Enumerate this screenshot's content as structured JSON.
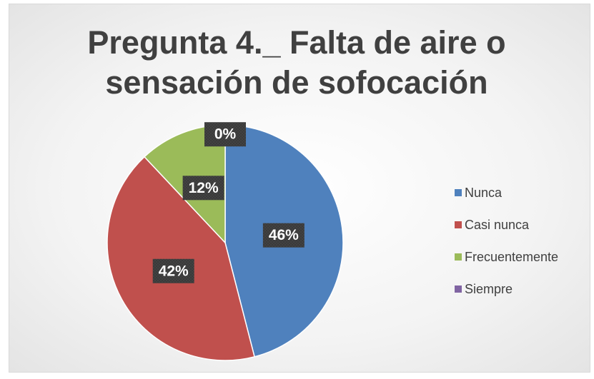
{
  "chart_data": {
    "type": "pie",
    "title": "Pregunta 4._ Falta de aire o sensación de sofocación",
    "categories": [
      "Nunca",
      "Casi nunca",
      "Frecuentemente",
      "Siempre"
    ],
    "values": [
      46,
      42,
      12,
      0
    ],
    "value_labels": [
      "46%",
      "42%",
      "12%",
      "0%"
    ],
    "colors": [
      "#4f81bd",
      "#c0504d",
      "#9bbb59",
      "#8064a2"
    ],
    "legend": "right"
  }
}
